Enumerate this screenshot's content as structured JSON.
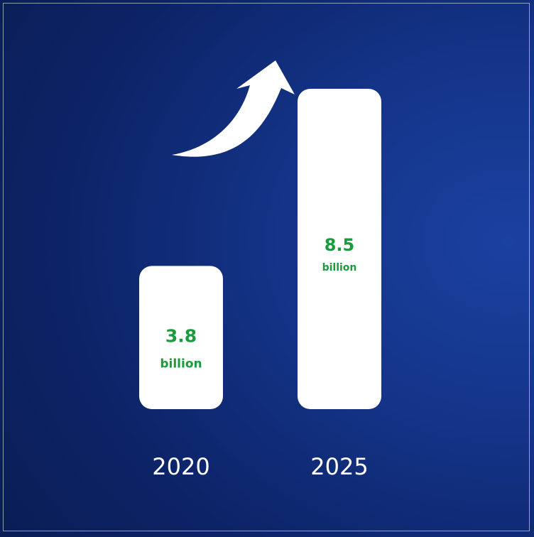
{
  "colors": {
    "bar_fill": "#ffffff",
    "value_text": "#1a9b3c",
    "label_text": "#ffffff",
    "arrow": "#ffffff"
  },
  "chart_data": {
    "type": "bar",
    "categories": [
      "2020",
      "2025"
    ],
    "values": [
      3.8,
      8.5
    ],
    "data_labels": [
      {
        "value": "3.8",
        "unit": "billion"
      },
      {
        "value": "8.5",
        "unit": "billion"
      }
    ],
    "title": "",
    "xlabel": "",
    "ylabel": "",
    "grid": false,
    "legend": "none",
    "annotation_icon": "growth-arrow-icon"
  }
}
